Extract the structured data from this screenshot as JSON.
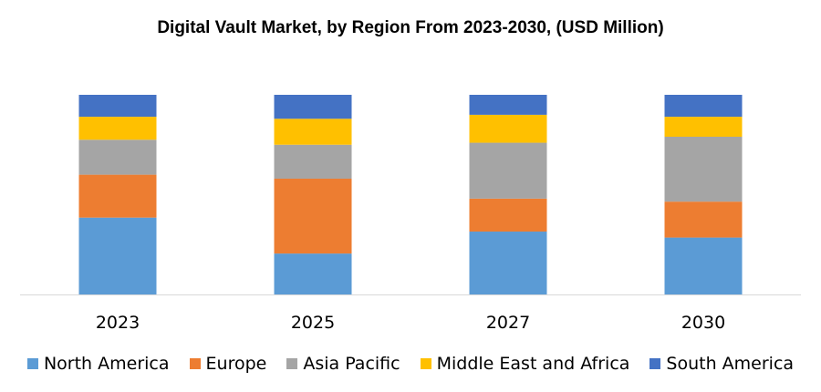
{
  "chart_data": {
    "type": "bar",
    "stacked": true,
    "title": "Digital Vault Market, by Region From 2023-2030, (USD Million)",
    "categories": [
      "2023",
      "2025",
      "2027",
      "2030"
    ],
    "series": [
      {
        "name": "North America",
        "color": "#5B9BD5",
        "values": [
          38.5,
          20.5,
          31.5,
          28.5
        ]
      },
      {
        "name": "Europe",
        "color": "#ED7D31",
        "values": [
          21.5,
          37.5,
          16.5,
          18
        ]
      },
      {
        "name": "Asia Pacific",
        "color": "#A5A5A5",
        "values": [
          17.5,
          17,
          28,
          32.5
        ]
      },
      {
        "name": "Middle East and Africa",
        "color": "#FFC000",
        "values": [
          11.5,
          13,
          14,
          10
        ]
      },
      {
        "name": "South America",
        "color": "#4472C4",
        "values": [
          11,
          12,
          10,
          11
        ]
      }
    ],
    "ylim": [
      0,
      100
    ],
    "grid": false,
    "legend_position": "bottom"
  }
}
